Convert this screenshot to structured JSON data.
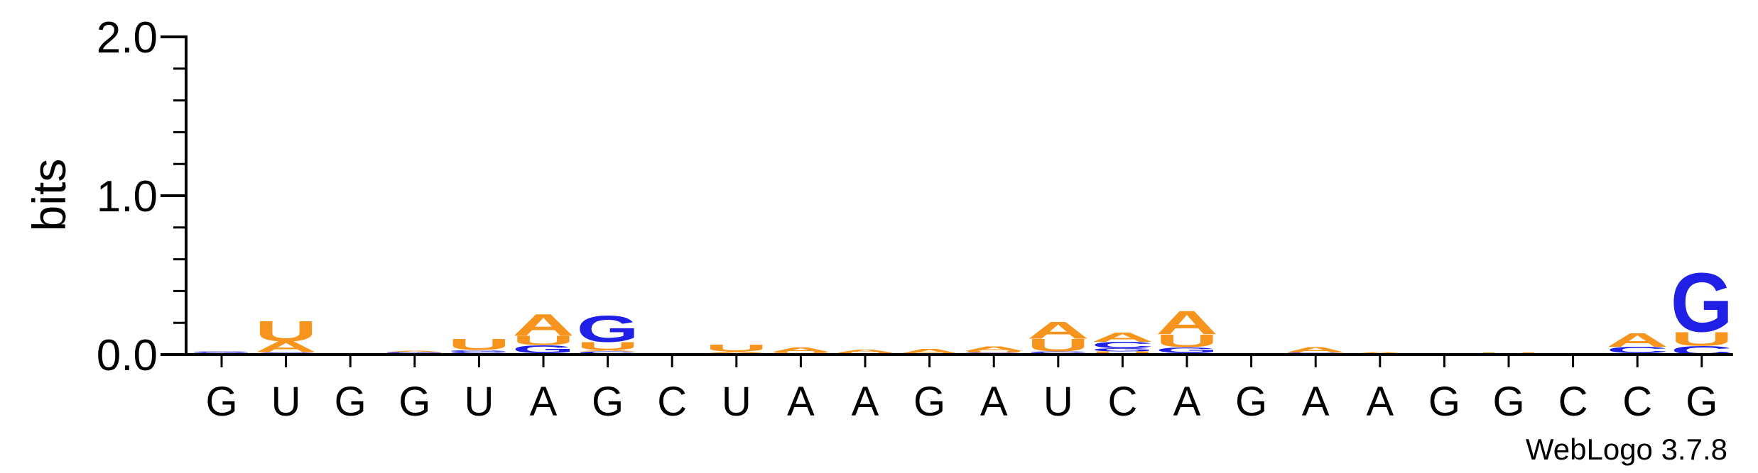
{
  "chart_data": {
    "type": "sequence-logo",
    "ylabel": "bits",
    "ylim": [
      0,
      2
    ],
    "yticks": [
      {
        "value": 0,
        "label": "0.0"
      },
      {
        "value": 1,
        "label": "1.0"
      },
      {
        "value": 2,
        "label": "2.0"
      }
    ],
    "consensus": [
      "G",
      "U",
      "G",
      "G",
      "U",
      "A",
      "G",
      "C",
      "U",
      "A",
      "A",
      "G",
      "A",
      "U",
      "C",
      "A",
      "G",
      "A",
      "A",
      "G",
      "G",
      "C",
      "C",
      "G"
    ],
    "colors": {
      "A": "#f7941d",
      "U": "#f7941d",
      "G": "#1f1fe6",
      "C": "#1f1fe6"
    },
    "positions": [
      {
        "stack": [
          {
            "letter": "C",
            "bits": 0.012
          },
          {
            "letter": "G",
            "bits": 0.008
          }
        ]
      },
      {
        "stack": [
          {
            "letter": "C",
            "bits": 0.015
          },
          {
            "letter": "A",
            "bits": 0.07
          },
          {
            "letter": "U",
            "bits": 0.13
          }
        ]
      },
      {
        "stack": [
          {
            "letter": "C",
            "bits": 0.004
          },
          {
            "letter": "G",
            "bits": 0.004
          }
        ]
      },
      {
        "stack": [
          {
            "letter": "U",
            "bits": 0.008
          },
          {
            "letter": "G",
            "bits": 0.008
          },
          {
            "letter": "A",
            "bits": 0.01
          }
        ]
      },
      {
        "stack": [
          {
            "letter": "A",
            "bits": 0.008
          },
          {
            "letter": "C",
            "bits": 0.01
          },
          {
            "letter": "G",
            "bits": 0.01
          },
          {
            "letter": "U",
            "bits": 0.07
          }
        ]
      },
      {
        "stack": [
          {
            "letter": "C",
            "bits": 0.01
          },
          {
            "letter": "G",
            "bits": 0.05
          },
          {
            "letter": "U",
            "bits": 0.06
          },
          {
            "letter": "A",
            "bits": 0.14
          }
        ]
      },
      {
        "stack": [
          {
            "letter": "C",
            "bits": 0.02
          },
          {
            "letter": "A",
            "bits": 0.01
          },
          {
            "letter": "U",
            "bits": 0.05
          },
          {
            "letter": "G",
            "bits": 0.17
          }
        ]
      },
      {
        "stack": [
          {
            "letter": "C",
            "bits": 0.003
          }
        ]
      },
      {
        "stack": [
          {
            "letter": "G",
            "bits": 0.008
          },
          {
            "letter": "A",
            "bits": 0.012
          },
          {
            "letter": "U",
            "bits": 0.045
          }
        ]
      },
      {
        "stack": [
          {
            "letter": "G",
            "bits": 0.008
          },
          {
            "letter": "U",
            "bits": 0.008
          },
          {
            "letter": "A",
            "bits": 0.03
          }
        ]
      },
      {
        "stack": [
          {
            "letter": "G",
            "bits": 0.004
          },
          {
            "letter": "U",
            "bits": 0.008
          },
          {
            "letter": "A",
            "bits": 0.02
          }
        ]
      },
      {
        "stack": [
          {
            "letter": "U",
            "bits": 0.006
          },
          {
            "letter": "A",
            "bits": 0.03
          }
        ]
      },
      {
        "stack": [
          {
            "letter": "C",
            "bits": 0.005
          },
          {
            "letter": "G",
            "bits": 0.008
          },
          {
            "letter": "U",
            "bits": 0.01
          },
          {
            "letter": "A",
            "bits": 0.03
          }
        ]
      },
      {
        "stack": [
          {
            "letter": "G",
            "bits": 0.008
          },
          {
            "letter": "C",
            "bits": 0.012
          },
          {
            "letter": "U",
            "bits": 0.08
          },
          {
            "letter": "A",
            "bits": 0.11
          }
        ]
      },
      {
        "stack": [
          {
            "letter": "U",
            "bits": 0.02
          },
          {
            "letter": "G",
            "bits": 0.02
          },
          {
            "letter": "C",
            "bits": 0.04
          },
          {
            "letter": "A",
            "bits": 0.06
          }
        ]
      },
      {
        "stack": [
          {
            "letter": "C",
            "bits": 0.012
          },
          {
            "letter": "G",
            "bits": 0.035
          },
          {
            "letter": "U",
            "bits": 0.08
          },
          {
            "letter": "A",
            "bits": 0.15
          }
        ]
      },
      {
        "stack": [
          {
            "letter": "U",
            "bits": 0.003
          },
          {
            "letter": "C",
            "bits": 0.003
          }
        ]
      },
      {
        "stack": [
          {
            "letter": "U",
            "bits": 0.005
          },
          {
            "letter": "G",
            "bits": 0.008
          },
          {
            "letter": "A",
            "bits": 0.035
          }
        ]
      },
      {
        "stack": [
          {
            "letter": "G",
            "bits": 0.005
          },
          {
            "letter": "A",
            "bits": 0.012
          }
        ]
      },
      {
        "stack": [
          {
            "letter": "C",
            "bits": 0.003
          }
        ]
      },
      {
        "stack": [
          {
            "letter": "C",
            "bits": 0.006
          },
          {
            "letter": "U",
            "bits": 0.006
          }
        ]
      },
      {
        "stack": [
          {
            "letter": "A",
            "bits": 0.004
          },
          {
            "letter": "U",
            "bits": 0.004
          }
        ]
      },
      {
        "stack": [
          {
            "letter": "U",
            "bits": 0.01
          },
          {
            "letter": "C",
            "bits": 0.04
          },
          {
            "letter": "A",
            "bits": 0.09
          }
        ]
      },
      {
        "stack": [
          {
            "letter": "C",
            "bits": 0.055
          },
          {
            "letter": "U",
            "bits": 0.09
          },
          {
            "letter": "G",
            "bits": 0.38
          }
        ]
      }
    ]
  },
  "credit": "WebLogo 3.7.8"
}
